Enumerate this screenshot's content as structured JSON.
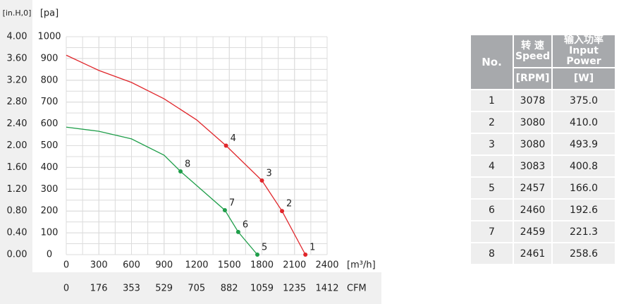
{
  "chart_data": {
    "type": "line",
    "y2_title": "[in.H,0]",
    "y_title": "[pa]",
    "x_title": "[m³/h]",
    "x2_title": "CFM",
    "xlim": [
      0,
      2400
    ],
    "xticks": [
      0,
      300,
      600,
      900,
      1200,
      1500,
      1800,
      2100,
      2400
    ],
    "x2lim": [
      0,
      1412
    ],
    "x2ticks": [
      0,
      176,
      353,
      529,
      705,
      882,
      1059,
      1235,
      1412
    ],
    "ylim": [
      0,
      1000
    ],
    "yticks": [
      0,
      100,
      200,
      300,
      400,
      500,
      600,
      700,
      800,
      900,
      1000
    ],
    "y2lim": [
      0,
      4
    ],
    "y2ticks": [
      {
        "value": 0,
        "label": "0.00"
      },
      {
        "value": 0.4,
        "label": "0.40"
      },
      {
        "value": 0.8,
        "label": "0.80"
      },
      {
        "value": 1.2,
        "label": "1.20"
      },
      {
        "value": 1.6,
        "label": "1.60"
      },
      {
        "value": 2,
        "label": "2.00"
      },
      {
        "value": 2.4,
        "label": "2.40"
      },
      {
        "value": 2.8,
        "label": "2.80"
      },
      {
        "value": 3.2,
        "label": "3.20"
      },
      {
        "value": 3.6,
        "label": "3.60"
      },
      {
        "value": 4,
        "label": "4.00"
      }
    ],
    "grid": true,
    "series": [
      {
        "color": "#e0262b",
        "x": [
          0,
          300,
          600,
          900,
          1200,
          1470,
          1800,
          1985,
          2200
        ],
        "values": [
          915,
          845,
          790,
          715,
          618,
          500,
          340,
          200,
          0
        ]
      },
      {
        "color": "#1f9e4a",
        "x": [
          0,
          300,
          600,
          900,
          1051,
          1459,
          1582,
          1758
        ],
        "values": [
          585,
          566,
          531,
          456,
          382,
          204,
          104,
          0
        ]
      }
    ],
    "points": [
      {
        "label": "1",
        "x": 2200,
        "y": 0,
        "color": "#e0262b"
      },
      {
        "label": "2",
        "x": 1985,
        "y": 200,
        "color": "#e0262b"
      },
      {
        "label": "3",
        "x": 1800,
        "y": 340,
        "color": "#e0262b"
      },
      {
        "label": "4",
        "x": 1470,
        "y": 500,
        "color": "#e0262b"
      },
      {
        "label": "5",
        "x": 1758,
        "y": 0,
        "color": "#1f9e4a"
      },
      {
        "label": "6",
        "x": 1582,
        "y": 104,
        "color": "#1f9e4a"
      },
      {
        "label": "7",
        "x": 1459,
        "y": 204,
        "color": "#1f9e4a"
      },
      {
        "label": "8",
        "x": 1051,
        "y": 382,
        "color": "#1f9e4a"
      }
    ]
  },
  "table": {
    "header": {
      "no": "No.",
      "speed_cn": "转 速",
      "speed_en": "Speed",
      "power_cn": "输入功率",
      "power_en": "Input Power",
      "rpm_unit": "[RPM]",
      "w_unit": "[W]"
    },
    "rows": [
      [
        "1",
        "3078",
        "375.0"
      ],
      [
        "2",
        "3080",
        "410.0"
      ],
      [
        "3",
        "3080",
        "493.9"
      ],
      [
        "4",
        "3083",
        "400.8"
      ],
      [
        "5",
        "2457",
        "166.0"
      ],
      [
        "6",
        "2460",
        "192.6"
      ],
      [
        "7",
        "2459",
        "221.3"
      ],
      [
        "8",
        "2461",
        "258.6"
      ]
    ]
  }
}
